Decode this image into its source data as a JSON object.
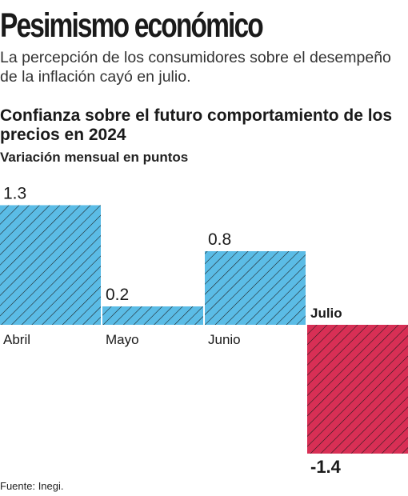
{
  "header": {
    "headline": "Pesimismo económico",
    "dek": "La percepción de los consumidores sobre el desempeño de la inflación cayó en julio."
  },
  "chart_data": {
    "type": "bar",
    "title": "Confianza sobre el futuro comportamiento de los precios en 2024",
    "subtitle": "Variación mensual en puntos",
    "categories": [
      "Abril",
      "Mayo",
      "Junio",
      "Julio"
    ],
    "values": [
      1.3,
      0.2,
      0.8,
      -1.4
    ],
    "value_labels": [
      "1.3",
      "0.2",
      "0.8",
      "-1.4"
    ],
    "colors": {
      "positive": "#5bbce6",
      "negative": "#d82f55",
      "hatch": "#1a1a1a"
    },
    "grid": false,
    "legend": "none"
  },
  "footer": {
    "source": "Fuente: Inegi."
  }
}
